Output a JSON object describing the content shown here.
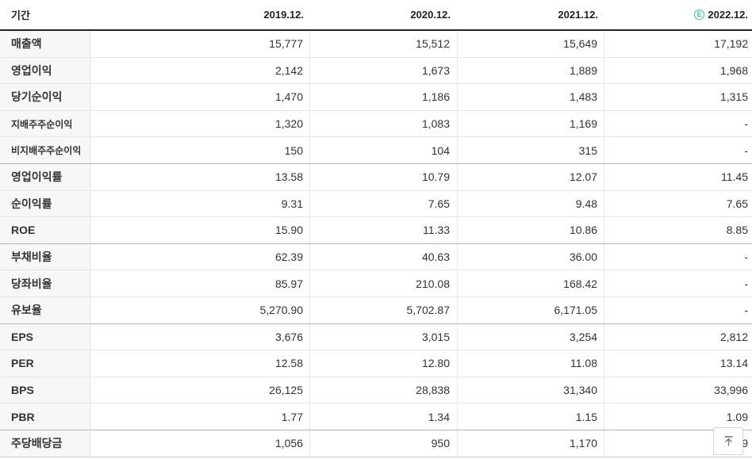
{
  "table": {
    "header": {
      "period_label": "기간",
      "columns": [
        "2019.12.",
        "2020.12.",
        "2021.12.",
        "2022.12."
      ],
      "estimate_badge": "E"
    },
    "rows": [
      {
        "label": "매출액",
        "sub": false,
        "values": [
          "15,777",
          "15,512",
          "15,649",
          "17,192"
        ]
      },
      {
        "label": "영업이익",
        "sub": false,
        "values": [
          "2,142",
          "1,673",
          "1,889",
          "1,968"
        ]
      },
      {
        "label": "당기순이익",
        "sub": false,
        "values": [
          "1,470",
          "1,186",
          "1,483",
          "1,315"
        ]
      },
      {
        "label": "지배주주순이익",
        "sub": true,
        "values": [
          "1,320",
          "1,083",
          "1,169",
          "-"
        ]
      },
      {
        "label": "비지배주주순이익",
        "sub": true,
        "values": [
          "150",
          "104",
          "315",
          "-"
        ]
      },
      {
        "label": "영업이익률",
        "sub": false,
        "group_start": true,
        "values": [
          "13.58",
          "10.79",
          "12.07",
          "11.45"
        ]
      },
      {
        "label": "순이익률",
        "sub": false,
        "values": [
          "9.31",
          "7.65",
          "9.48",
          "7.65"
        ]
      },
      {
        "label": "ROE",
        "sub": false,
        "values": [
          "15.90",
          "11.33",
          "10.86",
          "8.85"
        ]
      },
      {
        "label": "부채비율",
        "sub": false,
        "group_start": true,
        "values": [
          "62.39",
          "40.63",
          "36.00",
          "-"
        ]
      },
      {
        "label": "당좌비율",
        "sub": false,
        "values": [
          "85.97",
          "210.08",
          "168.42",
          "-"
        ]
      },
      {
        "label": "유보율",
        "sub": false,
        "values": [
          "5,270.90",
          "5,702.87",
          "6,171.05",
          "-"
        ]
      },
      {
        "label": "EPS",
        "sub": false,
        "group_start": true,
        "values": [
          "3,676",
          "3,015",
          "3,254",
          "2,812"
        ]
      },
      {
        "label": "PER",
        "sub": false,
        "values": [
          "12.58",
          "12.80",
          "11.08",
          "13.14"
        ]
      },
      {
        "label": "BPS",
        "sub": false,
        "values": [
          "26,125",
          "28,838",
          "31,340",
          "33,996"
        ]
      },
      {
        "label": "PBR",
        "sub": false,
        "values": [
          "1.77",
          "1.34",
          "1.15",
          "1.09"
        ]
      },
      {
        "label": "주당배당금",
        "sub": false,
        "group_start": true,
        "values": [
          "1,056",
          "950",
          "1,170",
          "9"
        ]
      }
    ]
  },
  "colors": {
    "estimate_green": "#35c5a2",
    "header_border": "#222222",
    "row_border": "#e6e6e6",
    "group_border": "#b5b5b5",
    "label_bg": "#f7f7f7",
    "text": "#333333"
  }
}
